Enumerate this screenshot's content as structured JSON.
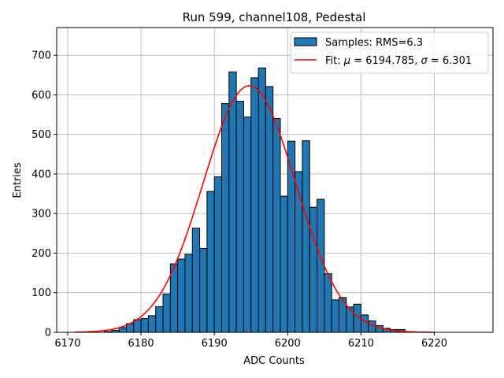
{
  "chart_data": {
    "type": "bar",
    "title": "Run 599, channel108, Pedestal",
    "xlabel": "ADC Counts",
    "ylabel": "Entries",
    "xlim": [
      6168.5,
      6228
    ],
    "ylim": [
      0,
      770
    ],
    "x_ticks": [
      6170,
      6180,
      6190,
      6200,
      6210,
      6220
    ],
    "y_ticks": [
      0,
      100,
      200,
      300,
      400,
      500,
      600,
      700
    ],
    "grid": true,
    "legend_position": "top-right",
    "histogram": {
      "name": "Samples: RMS=6.3",
      "color": "#1f77b4",
      "bin_width": 1,
      "bin_edges_start": 6175,
      "counts": [
        2,
        5,
        12,
        22,
        32,
        35,
        42,
        65,
        97,
        173,
        185,
        197,
        263,
        212,
        356,
        393,
        578,
        658,
        584,
        544,
        643,
        668,
        621,
        540,
        344,
        483,
        406,
        484,
        316,
        336,
        148,
        82,
        88,
        64,
        71,
        44,
        29,
        17,
        10,
        7,
        7
      ]
    },
    "fit": {
      "name": "Fit: μ = 6194.785, σ = 6.301",
      "name_parts": {
        "prefix": "Fit: ",
        "mu_symbol": "μ",
        "mu_value": " = 6194.785, ",
        "sigma_symbol": "σ",
        "sigma_value": " = 6.301"
      },
      "color": "#ff0000",
      "mu": 6194.785,
      "sigma": 6.301,
      "amplitude": 623,
      "x_range": [
        6171,
        6220
      ]
    }
  }
}
